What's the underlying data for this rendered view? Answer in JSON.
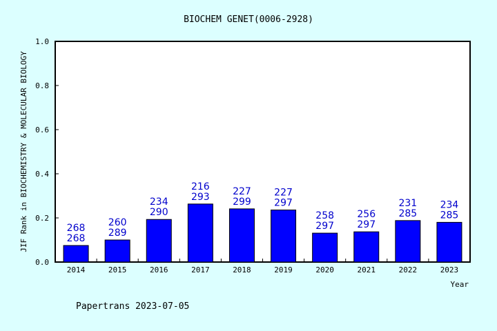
{
  "chart_data": {
    "type": "bar",
    "title": "BIOCHEM GENET(0006-2928)",
    "xlabel": "Year",
    "ylabel": "JIF Rank in BIOCHEMISTRY & MOLECULAR BIOLOGY",
    "ylim": [
      0,
      1.0
    ],
    "yticks": [
      "0.0",
      "0.2",
      "0.4",
      "0.6",
      "0.8",
      "1.0"
    ],
    "categories": [
      "2014",
      "2015",
      "2016",
      "2017",
      "2018",
      "2019",
      "2020",
      "2021",
      "2022",
      "2023"
    ],
    "values": [
      0.075,
      0.1,
      0.193,
      0.263,
      0.241,
      0.236,
      0.131,
      0.137,
      0.188,
      0.18
    ],
    "labels_top": [
      "268",
      "260",
      "234",
      "216",
      "227",
      "227",
      "258",
      "256",
      "231",
      "234"
    ],
    "labels_bottom": [
      "268",
      "289",
      "290",
      "293",
      "299",
      "297",
      "297",
      "297",
      "285",
      "285"
    ],
    "bar_color": "#0000ff",
    "label_color": "#0000cc",
    "grid": false,
    "legend": "none"
  },
  "footer": "Papertrans 2023-07-05"
}
